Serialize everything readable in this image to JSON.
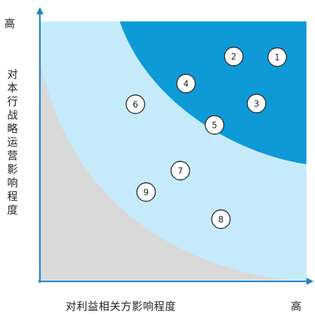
{
  "axes": {
    "y_high_label": "高",
    "y_title": "对本行战略运营影响程度",
    "x_title": "对利益相关方影响程度",
    "x_high_label": "高"
  },
  "colors": {
    "low_zone": "#d9d9d9",
    "mid_zone": "#c5ebfa",
    "high_zone": "#0d9ad7",
    "axis": "#1f84c8"
  },
  "markers": [
    "1",
    "2",
    "3",
    "4",
    "5",
    "6",
    "7",
    "8",
    "9"
  ]
}
